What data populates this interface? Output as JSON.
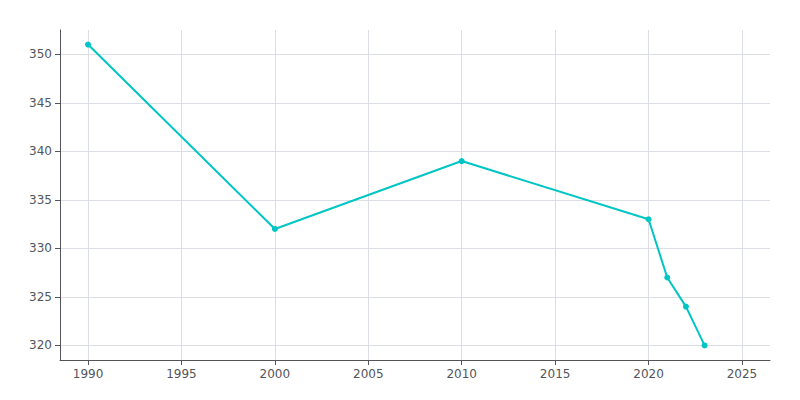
{
  "chart_data": {
    "type": "line",
    "x": [
      1990,
      2000,
      2010,
      2020,
      2021,
      2022,
      2023
    ],
    "values": [
      351,
      332,
      339,
      333,
      327,
      324,
      320
    ],
    "color": "#00C5C5",
    "marker": "circle",
    "xlim": [
      1988.5,
      2026.5
    ],
    "ylim": [
      318.5,
      352.5
    ],
    "xticks": [
      1990,
      1995,
      2000,
      2005,
      2010,
      2015,
      2020,
      2025
    ],
    "yticks": [
      320,
      325,
      330,
      335,
      340,
      345,
      350
    ],
    "grid": true
  }
}
